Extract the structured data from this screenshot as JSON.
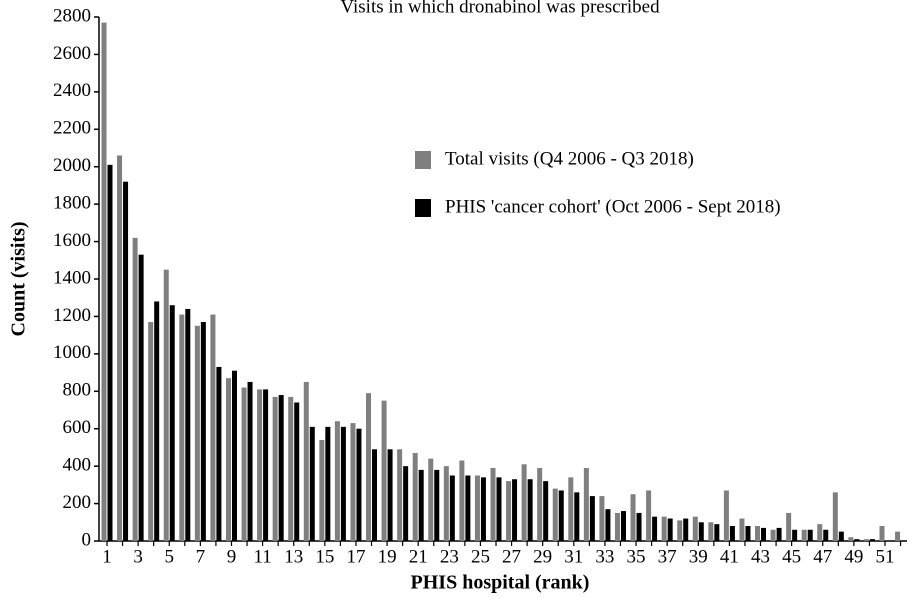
{
  "chart_data": {
    "type": "bar",
    "title": "Visits in which dronabinol was prescribed",
    "x_label": "PHIS hospital (rank)",
    "y_label": "Count (visits)",
    "categories": [
      "1",
      null,
      "3",
      null,
      "5",
      null,
      "7",
      null,
      "9",
      null,
      "11",
      null,
      "13",
      null,
      "15",
      null,
      "17",
      null,
      "19",
      null,
      "21",
      null,
      "23",
      null,
      "25",
      null,
      "27",
      null,
      "29",
      null,
      "31",
      null,
      "33",
      null,
      "35",
      null,
      "37",
      null,
      "39",
      null,
      "41",
      null,
      "43",
      null,
      "45",
      null,
      "47",
      null,
      "49",
      null,
      "51",
      null
    ],
    "series": [
      {
        "name": "Total visits (Q4 2006 - Q3 2018)",
        "color": "#7f7f7f",
        "values": [
          2770,
          2060,
          1620,
          1170,
          1450,
          1210,
          1150,
          1210,
          870,
          820,
          810,
          770,
          770,
          850,
          540,
          640,
          630,
          790,
          750,
          490,
          470,
          440,
          400,
          430,
          350,
          390,
          320,
          410,
          390,
          280,
          340,
          390,
          240,
          150,
          250,
          270,
          130,
          110,
          130,
          100,
          270,
          120,
          80,
          60,
          150,
          60,
          90,
          260,
          20,
          10,
          80,
          50
        ]
      },
      {
        "name": "PHIS 'cancer cohort' (Oct 2006 - Sept 2018)",
        "color": "#000000",
        "values": [
          2010,
          1920,
          1530,
          1280,
          1260,
          1240,
          1170,
          930,
          910,
          850,
          810,
          780,
          740,
          610,
          610,
          610,
          600,
          490,
          490,
          400,
          380,
          380,
          350,
          350,
          340,
          340,
          330,
          330,
          320,
          270,
          260,
          240,
          170,
          160,
          150,
          130,
          120,
          120,
          100,
          90,
          80,
          80,
          70,
          70,
          60,
          60,
          60,
          50,
          10,
          10,
          0,
          0
        ]
      }
    ],
    "ylim": [
      0,
      2800
    ],
    "yticks": [
      0,
      200,
      400,
      600,
      800,
      1000,
      1200,
      1400,
      1600,
      1800,
      2000,
      2200,
      2400,
      2600,
      2800
    ],
    "legend": "right"
  }
}
